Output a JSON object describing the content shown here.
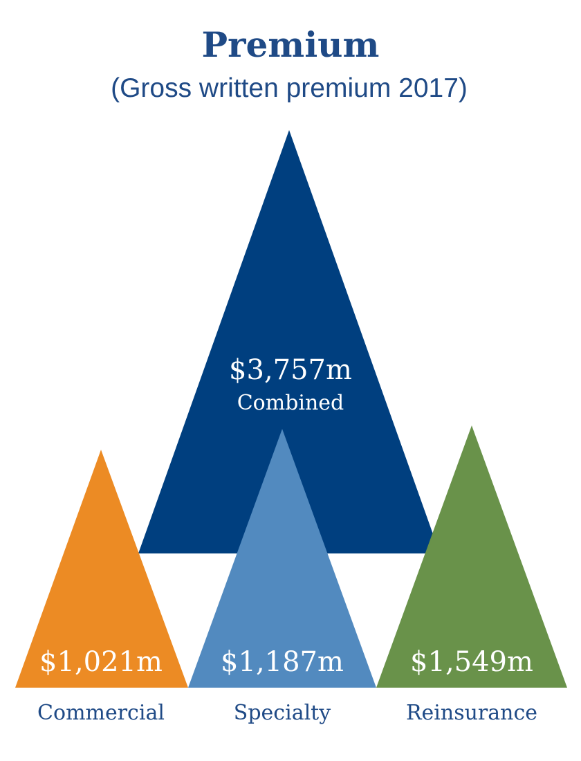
{
  "title": "Premium",
  "subtitle": "(Gross written premium 2017)",
  "chart_data": {
    "type": "area",
    "title": "Premium",
    "subtitle": "(Gross written premium 2017)",
    "combined": {
      "name": "Combined",
      "value": 3757,
      "label": "$3,757m",
      "color": "#003f7f"
    },
    "categories": [
      "Commercial",
      "Specialty",
      "Reinsurance"
    ],
    "series": [
      {
        "name": "Commercial",
        "value": 1021,
        "label": "$1,021m",
        "color": "#ec8b24"
      },
      {
        "name": "Specialty",
        "value": 1187,
        "label": "$1,187m",
        "color": "#528abf"
      },
      {
        "name": "Reinsurance",
        "value": 1549,
        "label": "$1,549m",
        "color": "#69924a"
      }
    ]
  }
}
